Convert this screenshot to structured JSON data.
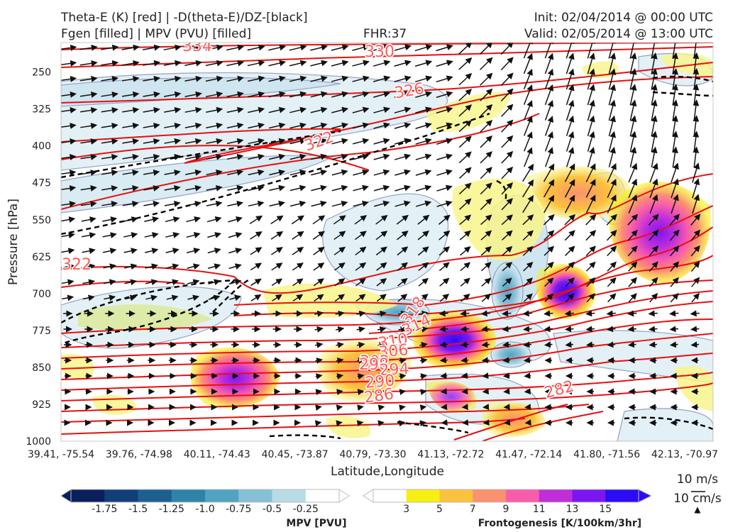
{
  "header": {
    "line1_left": "Theta-E (K) [red] | -D(theta-E)/DZ-[black]",
    "line2_left": "Fgen [filled] | MPV (PVU) [filled]",
    "fhr": "FHR:37",
    "init": "Init: 02/04/2014 @ 00:00 UTC",
    "valid": "Valid: 02/05/2014 @ 13:00 UTC"
  },
  "chart_data": {
    "type": "contour",
    "xlabel": "Latitude,Longitude",
    "ylabel": "Pressure [hPa]",
    "ylim": [
      1000,
      190
    ],
    "y_ticks": [
      250,
      325,
      400,
      475,
      550,
      625,
      700,
      775,
      850,
      925,
      1000
    ],
    "x_ticks": [
      "39.41, -75.54",
      "39.76, -74.98",
      "40.11, -74.43",
      "40.45, -73.87",
      "40.79, -73.30",
      "41.13, -72.72",
      "41.47, -72.14",
      "41.80, -71.56",
      "42.13, -70.97"
    ],
    "theta_e_labels": [
      "334",
      "330",
      "326",
      "322",
      "322",
      "318",
      "314",
      "310",
      "306",
      "302",
      "298",
      "294",
      "290",
      "286",
      "282"
    ],
    "wind_reference": {
      "horizontal": "10 m/s",
      "vertical": "10 cm/s"
    },
    "mpv_colorbar": {
      "title": "MPV [PVU]",
      "ticks": [
        "-1.75",
        "-1.5",
        "-1.25",
        "-1.0",
        "-0.75",
        "-0.5",
        "-0.25"
      ],
      "colors": [
        "#0a1f5c",
        "#123f7a",
        "#1d5f8f",
        "#2e84a8",
        "#52a3c2",
        "#86c0d6",
        "#b8dbe6",
        "#ffffff"
      ]
    },
    "fgen_colorbar": {
      "title": "Frontogenesis [K/100km/3hr]",
      "ticks": [
        "3",
        "5",
        "7",
        "9",
        "11",
        "13",
        "15"
      ],
      "colors": [
        "#ffffff",
        "#f7ef12",
        "#fbc23c",
        "#fb9170",
        "#f95cab",
        "#c02ed9",
        "#7b16f3",
        "#2a0cf8"
      ]
    }
  }
}
